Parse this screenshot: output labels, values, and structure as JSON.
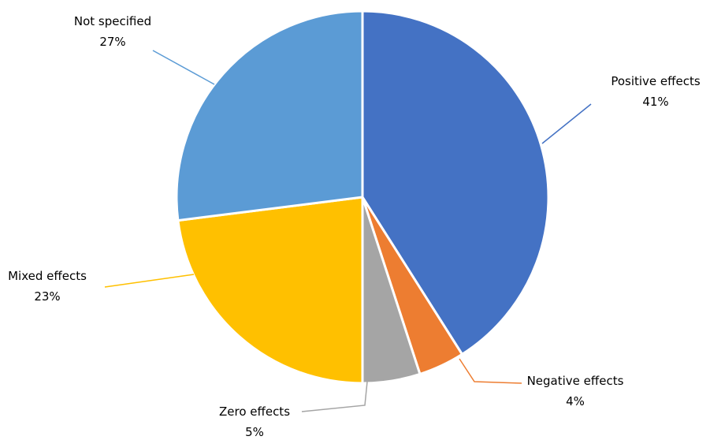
{
  "chart_data": {
    "type": "pie",
    "title": "",
    "slices": [
      {
        "label": "Positive effects",
        "value": 41,
        "value_label": "41%",
        "color": "#4472C4"
      },
      {
        "label": "Negative effects",
        "value": 4,
        "value_label": "4%",
        "color": "#ED7D31"
      },
      {
        "label": "Zero effects",
        "value": 5,
        "value_label": "5%",
        "color": "#A5A5A5"
      },
      {
        "label": "Mixed effects",
        "value": 23,
        "value_label": "23%",
        "color": "#FFC000"
      },
      {
        "label": "Not specified",
        "value": 27,
        "value_label": "27%",
        "color": "#5B9BD5"
      }
    ],
    "start_angle": "12 o'clock",
    "direction": "clockwise",
    "legend": "none"
  }
}
